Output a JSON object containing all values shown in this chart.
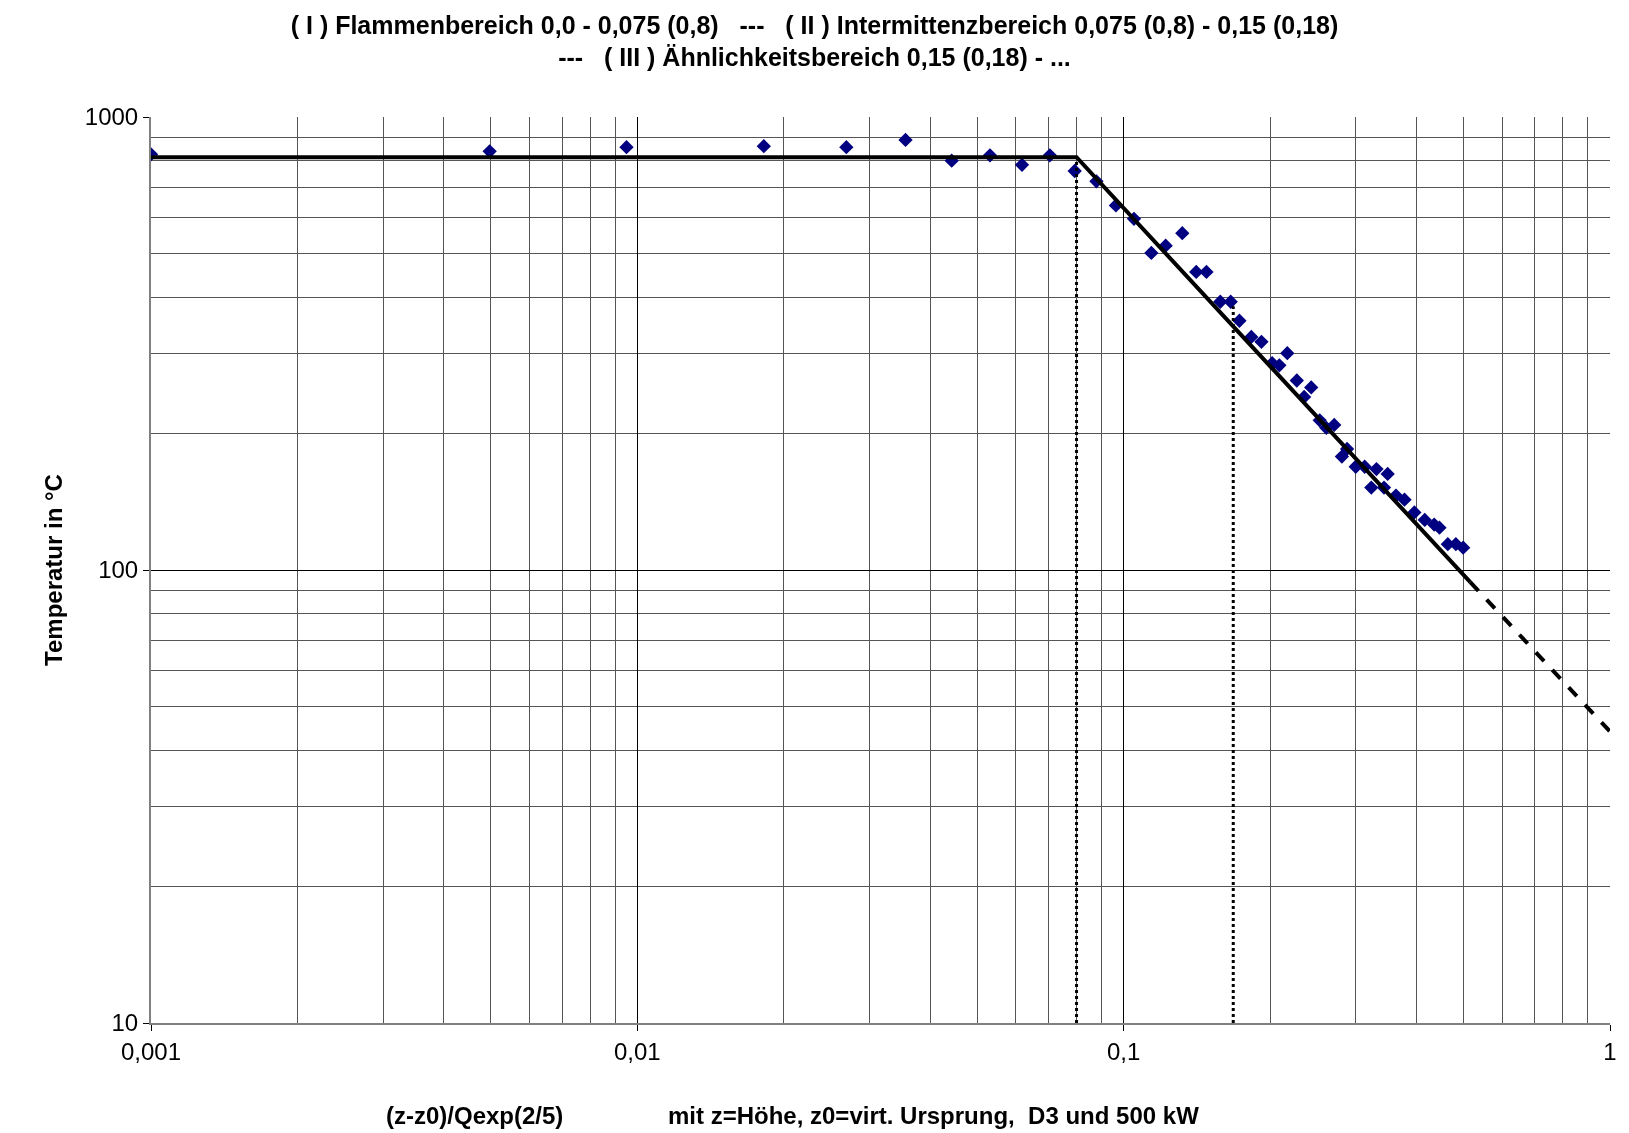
{
  "chart_data": {
    "type": "scatter",
    "title": "( I ) Flammenbereich 0,0 - 0,075 (0,8)   ---   ( II ) Intermittenzbereich 0,075 (0,8) - 0,15 (0,18)\n---   ( III ) Ähnlichkeitsbereich 0,15 (0,18) - ...",
    "xlabel": "(z-z0)/Qexp(2/5)",
    "ylabel": "Temperatur in °C",
    "annotations": [
      "mit z=Höhe, z0=virt. Ursprung,  D3 und 500 kW"
    ],
    "log": "xy",
    "grid": true,
    "legend": false,
    "xlim": [
      0.001,
      1
    ],
    "ylim": [
      10,
      1000
    ],
    "xticks": [
      {
        "value": 0.001,
        "label": "0,001"
      },
      {
        "value": 0.01,
        "label": "0,01"
      },
      {
        "value": 0.1,
        "label": "0,1"
      },
      1
    ],
    "yticks": [
      10,
      100,
      1000
    ],
    "series": [
      {
        "marker": "diamond",
        "color": "#000080",
        "x": [
          0.001,
          0.00497,
          0.0095,
          0.0182,
          0.0269,
          0.0356,
          0.0443,
          0.0531,
          0.0618,
          0.0705,
          0.0793,
          0.0879,
          0.0964,
          0.105,
          0.114,
          0.122,
          0.132,
          0.141,
          0.148,
          0.158,
          0.166,
          0.173,
          0.183,
          0.192,
          0.202,
          0.209,
          0.217,
          0.227,
          0.235,
          0.243,
          0.253,
          0.261,
          0.271,
          0.281,
          0.288,
          0.3,
          0.313,
          0.323,
          0.331,
          0.343,
          0.349,
          0.363,
          0.378,
          0.396,
          0.416,
          0.435,
          0.446,
          0.464,
          0.482,
          0.499
        ],
        "values": [
          827,
          840,
          858,
          862,
          858,
          890,
          801,
          823,
          784,
          823,
          760,
          721,
          638,
          596,
          501,
          520,
          554,
          455,
          455,
          391,
          391,
          355,
          327,
          319,
          286,
          283,
          301,
          262,
          241,
          253,
          214,
          206,
          209,
          178,
          185,
          169,
          169,
          152,
          167,
          152,
          163,
          146,
          143,
          134,
          129,
          126,
          124,
          114,
          114,
          112
        ]
      },
      {
        "type": "line",
        "color": "#000000",
        "line_style": "solid",
        "x": [
          0.001,
          0.08,
          0.516
        ],
        "values": [
          815,
          815,
          94
        ]
      },
      {
        "type": "line",
        "color": "#000000",
        "line_style": "dashed",
        "x": [
          0.516,
          1
        ],
        "values": [
          94,
          44
        ]
      },
      {
        "type": "line",
        "color": "#000000",
        "line_style": "dotted",
        "x": [
          0.08,
          0.08
        ],
        "values": [
          10,
          815
        ]
      },
      {
        "type": "line",
        "color": "#000000",
        "line_style": "dotted",
        "x": [
          0.168,
          0.168
        ],
        "values": [
          10,
          382
        ]
      }
    ]
  }
}
